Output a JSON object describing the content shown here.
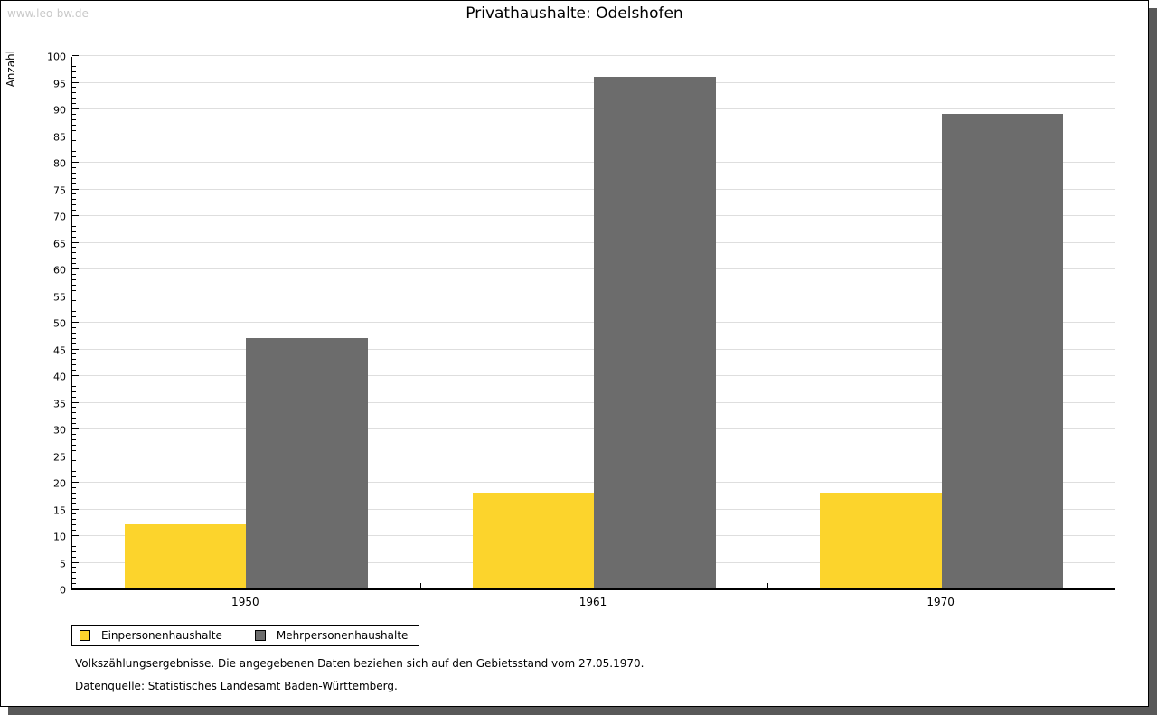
{
  "watermark": "www.leo-bw.de",
  "title": "Privathaushalte: Odelshofen",
  "chart_data": {
    "type": "bar",
    "title": "Privathaushalte: Odelshofen",
    "categories": [
      "1950",
      "1961",
      "1970"
    ],
    "series": [
      {
        "name": "Einpersonenhaushalte",
        "color": "#FCD42C",
        "values": [
          12,
          18,
          18
        ]
      },
      {
        "name": "Mehrpersonenhaushalte",
        "color": "#6C6C6C",
        "values": [
          47,
          96,
          89
        ]
      }
    ],
    "xlabel": "",
    "ylabel": "Anzahl",
    "ylim": [
      0,
      100
    ],
    "ytick_step": 5,
    "yminor_step": 1,
    "grid": true,
    "gridline_color": "#dedede",
    "legend_position": "bottom-left",
    "legend_labels": [
      "Einpersonenhaushalte",
      "Mehrpersonenhaushalte"
    ]
  },
  "footer": {
    "line1": "Volkszählungsergebnisse. Die angegebenen Daten beziehen sich auf den Gebietsstand vom 27.05.1970.",
    "line2": "Datenquelle: Statistisches Landesamt Baden-Württemberg."
  }
}
